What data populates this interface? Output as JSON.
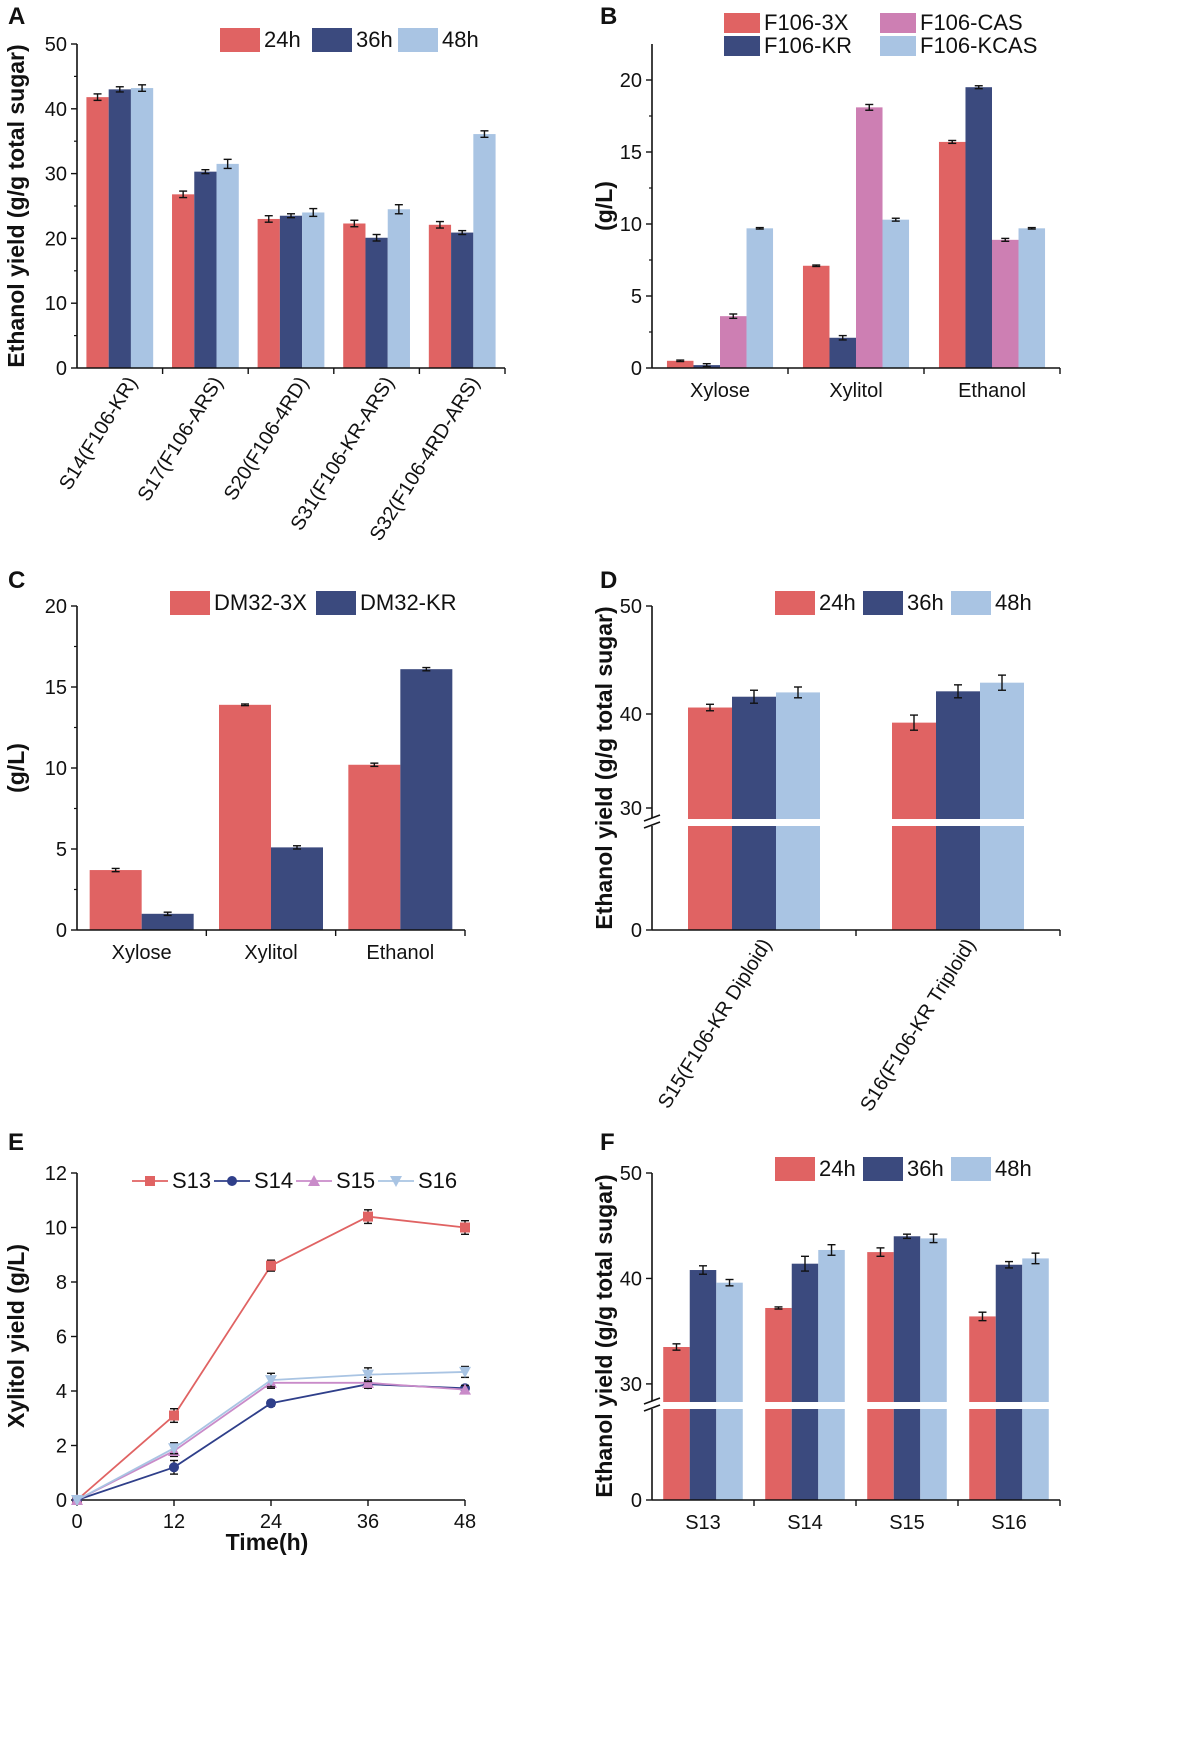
{
  "figure": {
    "panels": [
      "A",
      "B",
      "C",
      "D",
      "E",
      "F"
    ]
  },
  "colors": {
    "c24h": "#e06363",
    "c36h": "#3b4a7e",
    "c48h": "#a9c4e3",
    "F106-3X": "#e06363",
    "F106-KR": "#3b4a7e",
    "F106-CAS": "#cd7fb3",
    "F106-KCAS": "#a9c4e3",
    "DM32-3X": "#e06363",
    "DM32-KR": "#3b4a7e",
    "S13": "#e06363",
    "S14": "#2f3f8a",
    "S15": "#c98bc9",
    "S16": "#a9c4e3"
  },
  "chart_data": [
    {
      "id": "A",
      "type": "bar",
      "title": "",
      "ylabel": "Ethanol yield (g/g total sugar)",
      "xlabel": "",
      "ylim": [
        0,
        50
      ],
      "yticks": [
        0,
        10,
        20,
        30,
        40,
        50
      ],
      "categories": [
        "S14(F106-KR)",
        "S17(F106-ARS)",
        "S20(F106-4RD)",
        "S31(F106-KR-ARS)",
        "S32(F106-4RD-ARS)"
      ],
      "series": [
        {
          "name": "24h",
          "values": [
            41.8,
            26.8,
            23.0,
            22.3,
            22.1
          ],
          "errors": [
            0.5,
            0.5,
            0.5,
            0.5,
            0.5
          ]
        },
        {
          "name": "36h",
          "values": [
            43.0,
            30.3,
            23.5,
            20.1,
            20.9
          ],
          "errors": [
            0.4,
            0.3,
            0.3,
            0.5,
            0.3
          ]
        },
        {
          "name": "48h",
          "values": [
            43.2,
            31.5,
            24.0,
            24.5,
            36.1
          ],
          "errors": [
            0.5,
            0.7,
            0.6,
            0.7,
            0.5
          ]
        }
      ],
      "legend": "top-right"
    },
    {
      "id": "B",
      "type": "bar",
      "title": "",
      "ylabel": "(g/L)",
      "xlabel": "",
      "ylim": [
        0,
        22.5
      ],
      "yticks": [
        0,
        5,
        10,
        15,
        20
      ],
      "categories": [
        "Xylose",
        "Xylitol",
        "Ethanol"
      ],
      "series": [
        {
          "name": "F106-3X",
          "values": [
            0.5,
            7.1,
            15.7
          ],
          "errors": [
            0.05,
            0.05,
            0.1
          ]
        },
        {
          "name": "F106-KR",
          "values": [
            0.2,
            2.1,
            19.5
          ],
          "errors": [
            0.1,
            0.15,
            0.1
          ]
        },
        {
          "name": "F106-CAS",
          "values": [
            3.6,
            18.1,
            8.9
          ],
          "errors": [
            0.15,
            0.2,
            0.1
          ]
        },
        {
          "name": "F106-KCAS",
          "values": [
            9.7,
            10.3,
            9.7
          ],
          "errors": [
            0.05,
            0.1,
            0.05
          ]
        }
      ],
      "legend": "top"
    },
    {
      "id": "C",
      "type": "bar",
      "title": "",
      "ylabel": "(g/L)",
      "xlabel": "",
      "ylim": [
        0,
        20
      ],
      "yticks": [
        0,
        5,
        10,
        15,
        20
      ],
      "categories": [
        "Xylose",
        "Xylitol",
        "Ethanol"
      ],
      "series": [
        {
          "name": "DM32-3X",
          "values": [
            3.7,
            13.9,
            10.2
          ],
          "errors": [
            0.1,
            0.05,
            0.1
          ]
        },
        {
          "name": "DM32-KR",
          "values": [
            1.0,
            5.1,
            16.1
          ],
          "errors": [
            0.1,
            0.1,
            0.1
          ]
        }
      ],
      "legend": "top-right"
    },
    {
      "id": "D",
      "type": "bar",
      "title": "",
      "ylabel": "Ethanol yield (g/g total sugar)",
      "xlabel": "",
      "axis_break": [
        0,
        30
      ],
      "ylim": [
        30,
        50
      ],
      "yticks": [
        0,
        30,
        40,
        50
      ],
      "categories": [
        "S15(F106-KR Diploid)",
        "S16(F106-KR Triploid)"
      ],
      "series": [
        {
          "name": "24h",
          "values": [
            40.6,
            39.2
          ],
          "errors": [
            0.3,
            0.7
          ]
        },
        {
          "name": "36h",
          "values": [
            41.6,
            42.1
          ],
          "errors": [
            0.6,
            0.6
          ]
        },
        {
          "name": "48h",
          "values": [
            42.0,
            42.9
          ],
          "errors": [
            0.5,
            0.7
          ]
        }
      ],
      "legend": "top-right"
    },
    {
      "id": "E",
      "type": "line",
      "title": "",
      "ylabel": "Xylitol yield (g/L)",
      "xlabel": "Time(h)",
      "xlim": [
        0,
        48
      ],
      "xticks": [
        0,
        12,
        24,
        36,
        48
      ],
      "ylim": [
        0,
        12
      ],
      "yticks": [
        0,
        2,
        4,
        6,
        8,
        10,
        12
      ],
      "x": [
        0,
        12,
        24,
        36,
        48
      ],
      "series": [
        {
          "name": "S13",
          "values": [
            0,
            3.1,
            8.6,
            10.4,
            10.0
          ],
          "errors": [
            0,
            0.25,
            0.2,
            0.25,
            0.25
          ],
          "marker": "square"
        },
        {
          "name": "S14",
          "values": [
            0,
            1.2,
            3.55,
            4.25,
            4.1
          ],
          "errors": [
            0,
            0.25,
            0.1,
            0.15,
            0.1
          ],
          "marker": "circle"
        },
        {
          "name": "S15",
          "values": [
            0,
            1.8,
            4.3,
            4.3,
            4.05
          ],
          "errors": [
            0,
            0.2,
            0.2,
            0.2,
            0.15
          ],
          "marker": "triangle-up"
        },
        {
          "name": "S16",
          "values": [
            0,
            1.9,
            4.4,
            4.6,
            4.7
          ],
          "errors": [
            0,
            0.2,
            0.25,
            0.25,
            0.2
          ],
          "marker": "triangle-down"
        }
      ],
      "legend": "top"
    },
    {
      "id": "F",
      "type": "bar",
      "title": "",
      "ylabel": "Ethanol yield (g/g total sugar)",
      "xlabel": "",
      "axis_break": [
        0,
        28
      ],
      "ylim": [
        28,
        50
      ],
      "yticks": [
        0,
        30,
        40,
        50
      ],
      "categories": [
        "S13",
        "S14",
        "S15",
        "S16"
      ],
      "series": [
        {
          "name": "24h",
          "values": [
            33.5,
            37.2,
            42.5,
            36.4
          ],
          "errors": [
            0.3,
            0.1,
            0.4,
            0.4
          ]
        },
        {
          "name": "36h",
          "values": [
            40.8,
            41.4,
            44.0,
            41.3
          ],
          "errors": [
            0.4,
            0.7,
            0.2,
            0.3
          ]
        },
        {
          "name": "48h",
          "values": [
            39.6,
            42.7,
            43.8,
            41.9
          ],
          "errors": [
            0.3,
            0.5,
            0.4,
            0.5
          ]
        }
      ],
      "legend": "top-right"
    }
  ]
}
